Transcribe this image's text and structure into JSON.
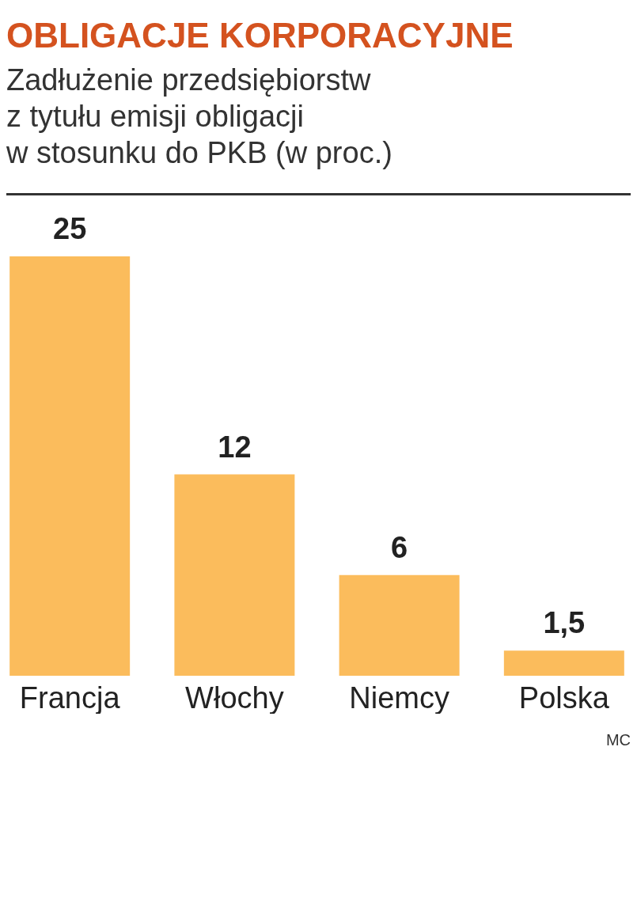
{
  "chart_data": {
    "type": "bar",
    "title": "OBLIGACJE KORPORACYJNE",
    "subtitle": "Zadłużenie przedsiębiorstw\nz tytułu emisji obligacji\nw stosunku do PKB (w proc.)",
    "categories": [
      "Francja",
      "Włochy",
      "Niemcy",
      "Polska"
    ],
    "values": [
      25,
      12,
      6,
      1.5
    ],
    "value_labels": [
      "25",
      "12",
      "6",
      "1,5"
    ],
    "color": "#fbbc5c",
    "annotations": [
      "MC"
    ]
  }
}
